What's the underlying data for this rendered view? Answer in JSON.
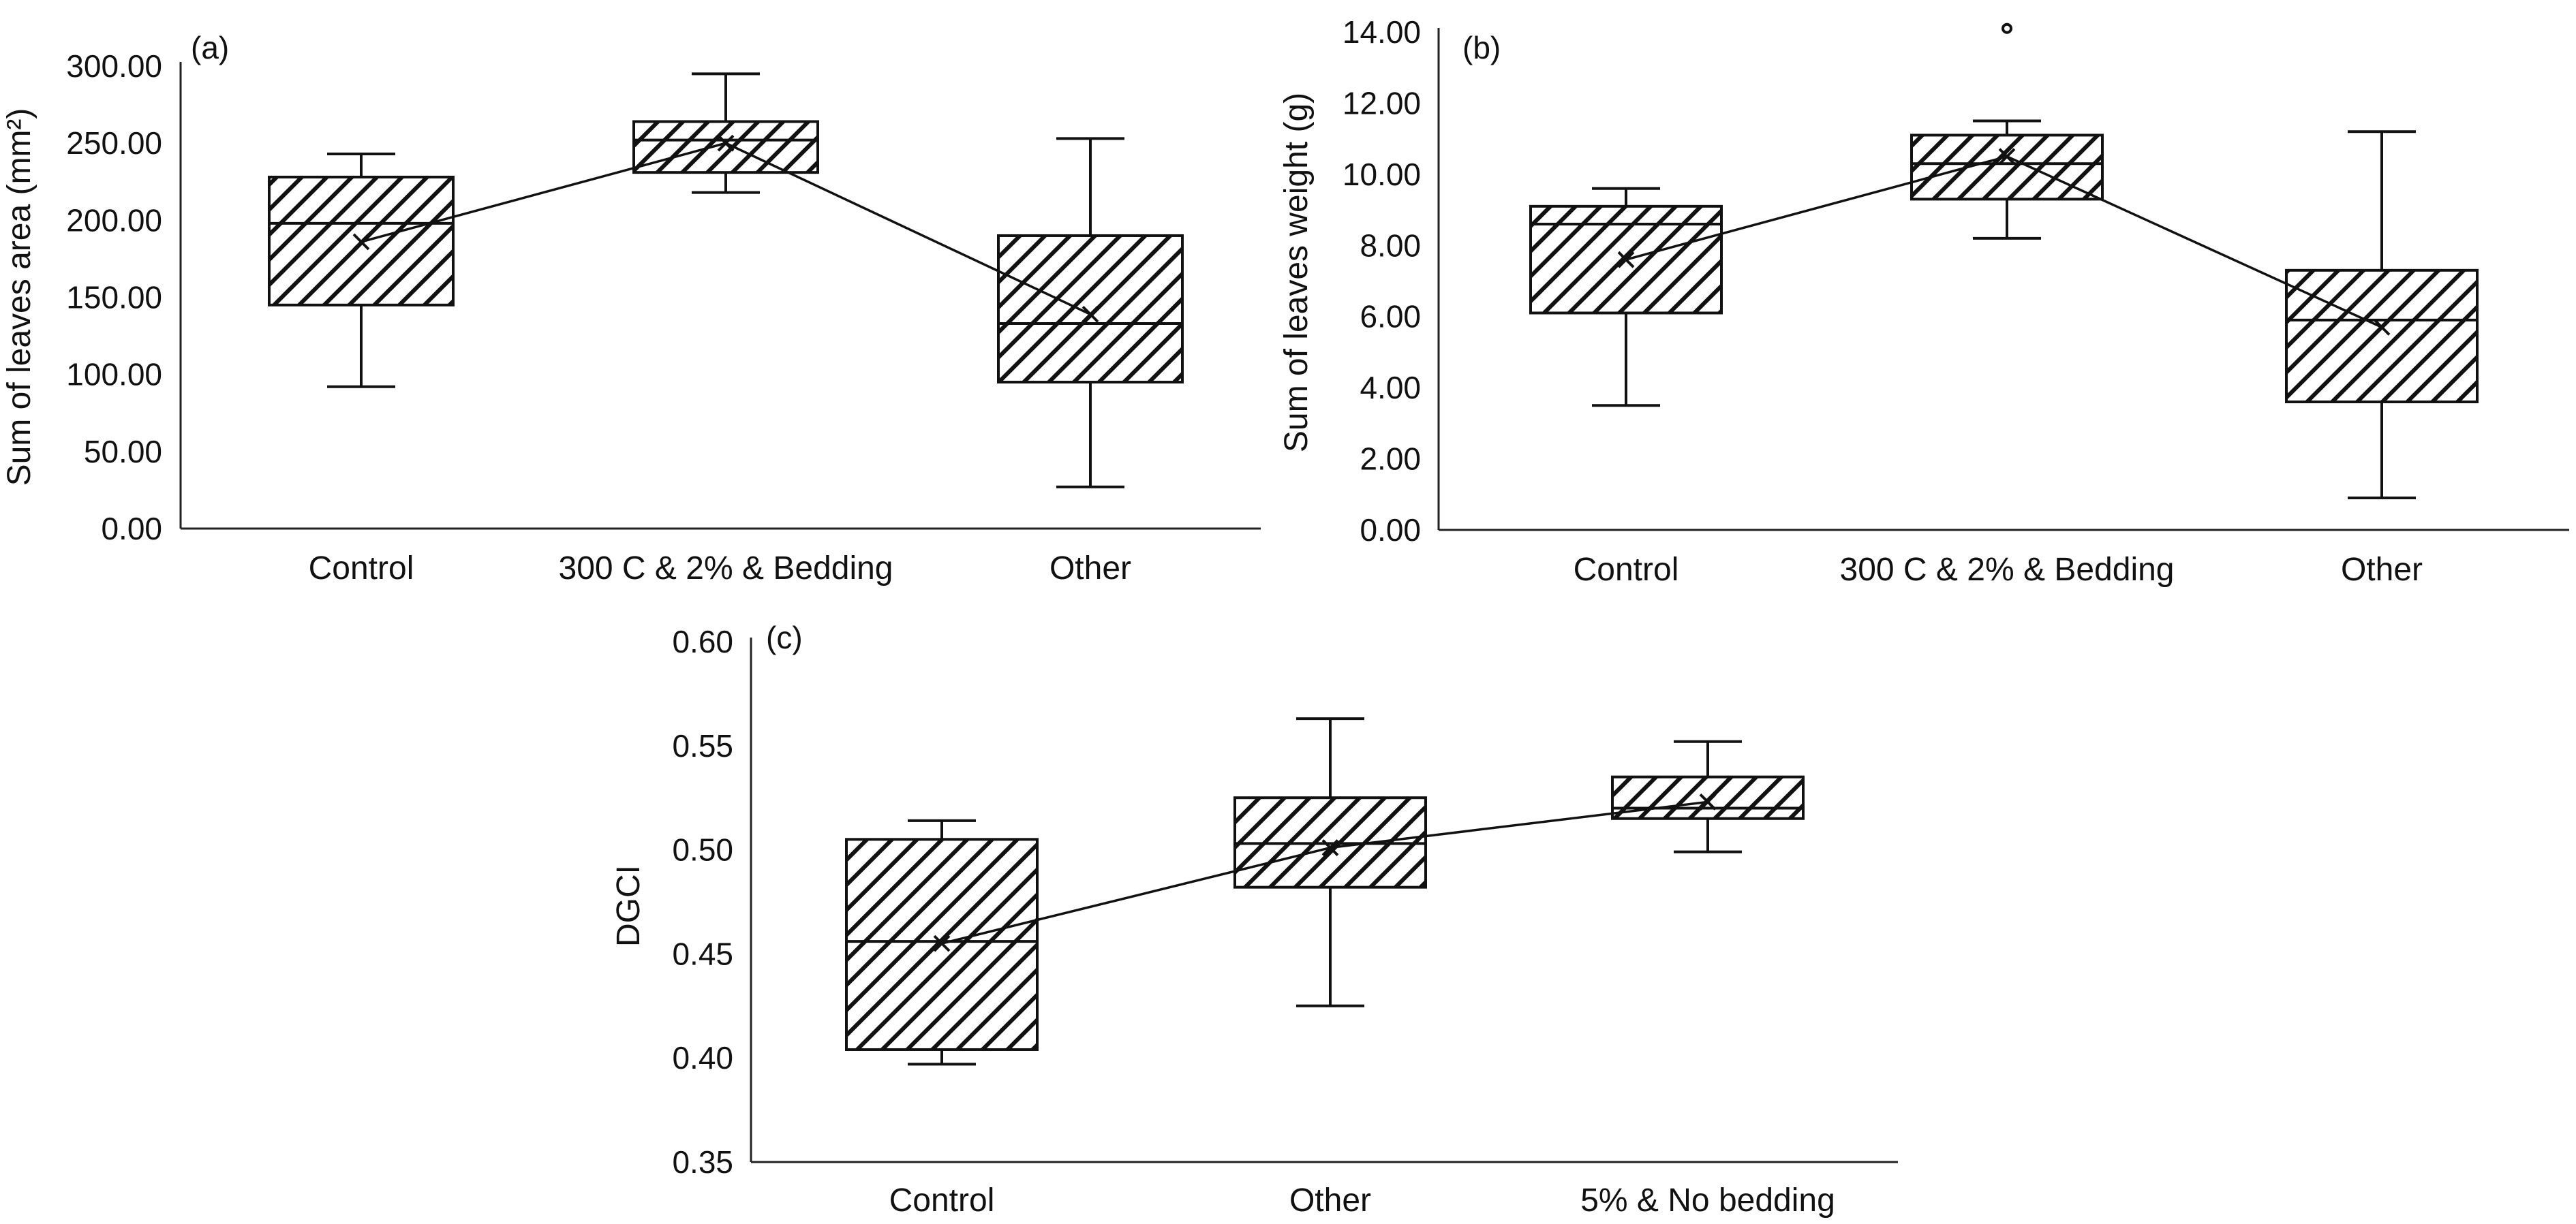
{
  "chart_data": [
    {
      "type": "box",
      "panel_label": "(a)",
      "title": "",
      "xlabel": "",
      "ylabel": "Sum of leaves area (mm²)",
      "ylim": [
        0,
        300
      ],
      "yticks": [
        0,
        50,
        100,
        150,
        200,
        250,
        300
      ],
      "ytick_labels": [
        "0.00",
        "50.00",
        "100.00",
        "150.00",
        "200.00",
        "250.00",
        "300.00"
      ],
      "categories": [
        "Control",
        "300 C & 2% & Bedding",
        "Other"
      ],
      "boxes": [
        {
          "min": 92,
          "q1": 145,
          "median": 198,
          "q3": 228,
          "max": 243,
          "mean": 186,
          "outliers": []
        },
        {
          "min": 218,
          "q1": 231,
          "median": 252,
          "q3": 264,
          "max": 295,
          "mean": 250,
          "outliers": []
        },
        {
          "min": 27,
          "q1": 95,
          "median": 133,
          "q3": 190,
          "max": 253,
          "mean": 139,
          "outliers": []
        }
      ]
    },
    {
      "type": "box",
      "panel_label": "(b)",
      "title": "",
      "xlabel": "",
      "ylabel": "Sum of leaves weight (g)",
      "ylim": [
        0,
        14
      ],
      "yticks": [
        0,
        2,
        4,
        6,
        8,
        10,
        12,
        14
      ],
      "ytick_labels": [
        "0.00",
        "2.00",
        "4.00",
        "6.00",
        "8.00",
        "10.00",
        "12.00",
        "14.00"
      ],
      "categories": [
        "Control",
        "300 C & 2% & Bedding",
        "Other"
      ],
      "boxes": [
        {
          "min": 3.5,
          "q1": 6.1,
          "median": 8.6,
          "q3": 9.1,
          "max": 9.6,
          "mean": 7.6,
          "outliers": []
        },
        {
          "min": 8.2,
          "q1": 9.3,
          "median": 10.3,
          "q3": 11.1,
          "max": 11.5,
          "mean": 10.5,
          "outliers": [
            14.1
          ]
        },
        {
          "min": 0.9,
          "q1": 3.6,
          "median": 5.9,
          "q3": 7.3,
          "max": 11.2,
          "mean": 5.7,
          "outliers": []
        }
      ]
    },
    {
      "type": "box",
      "panel_label": "(c)",
      "title": "",
      "xlabel": "",
      "ylabel": "DGCI",
      "ylim": [
        0.35,
        0.6
      ],
      "yticks": [
        0.35,
        0.4,
        0.45,
        0.5,
        0.55,
        0.6
      ],
      "ytick_labels": [
        "0.35",
        "0.40",
        "0.45",
        "0.50",
        "0.55",
        "0.60"
      ],
      "categories": [
        "Control",
        "Other",
        "5% & No bedding"
      ],
      "boxes": [
        {
          "min": 0.397,
          "q1": 0.404,
          "median": 0.456,
          "q3": 0.505,
          "max": 0.514,
          "mean": 0.455,
          "outliers": []
        },
        {
          "min": 0.425,
          "q1": 0.482,
          "median": 0.503,
          "q3": 0.525,
          "max": 0.563,
          "mean": 0.501,
          "outliers": []
        },
        {
          "min": 0.499,
          "q1": 0.515,
          "median": 0.52,
          "q3": 0.535,
          "max": 0.552,
          "mean": 0.523,
          "outliers": []
        }
      ]
    }
  ]
}
